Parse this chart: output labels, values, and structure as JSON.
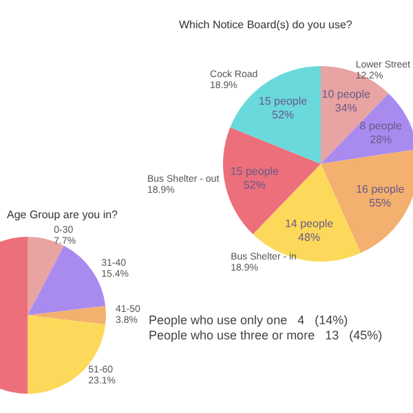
{
  "chart_data": [
    {
      "type": "pie",
      "title": "Age Group are you in?",
      "categories": [
        "0-30",
        "31-40",
        "41-50",
        "51-60",
        null
      ],
      "values": [
        7.7,
        15.4,
        3.8,
        23.1,
        50.0
      ],
      "value_labels": [
        "7.7%",
        "15.4%",
        "3.8%",
        "23.1%",
        null
      ],
      "colors": [
        "#e8a3a3",
        "#a98bf0",
        "#f3b06e",
        "#fcd95a",
        "#ec6f7b"
      ]
    },
    {
      "type": "pie",
      "title": "Which Notice Board(s) do you use?",
      "categories": [
        "Lower Street",
        null,
        null,
        "Bus Shelter - in",
        "Bus Shelter - out",
        "Cock Road"
      ],
      "values": [
        12.2,
        10.4,
        20.7,
        18.9,
        18.9,
        18.9
      ],
      "value_labels": [
        "12.2%",
        null,
        null,
        "18.9%",
        "18.9%",
        "18.9%"
      ],
      "colors": [
        "#e8a3a3",
        "#a98bf0",
        "#f3b06e",
        "#fcd95a",
        "#ec6f7b",
        "#6ad9dc"
      ],
      "annotations": [
        "10 people\n34%",
        "8 people\n28%",
        "16 people\n55%",
        "14 people\n48%",
        "15 people\n52%",
        "15 people\n52%",
        "People who use only one   4   (14%)",
        "People who use three or more   13   (45%)"
      ]
    }
  ]
}
